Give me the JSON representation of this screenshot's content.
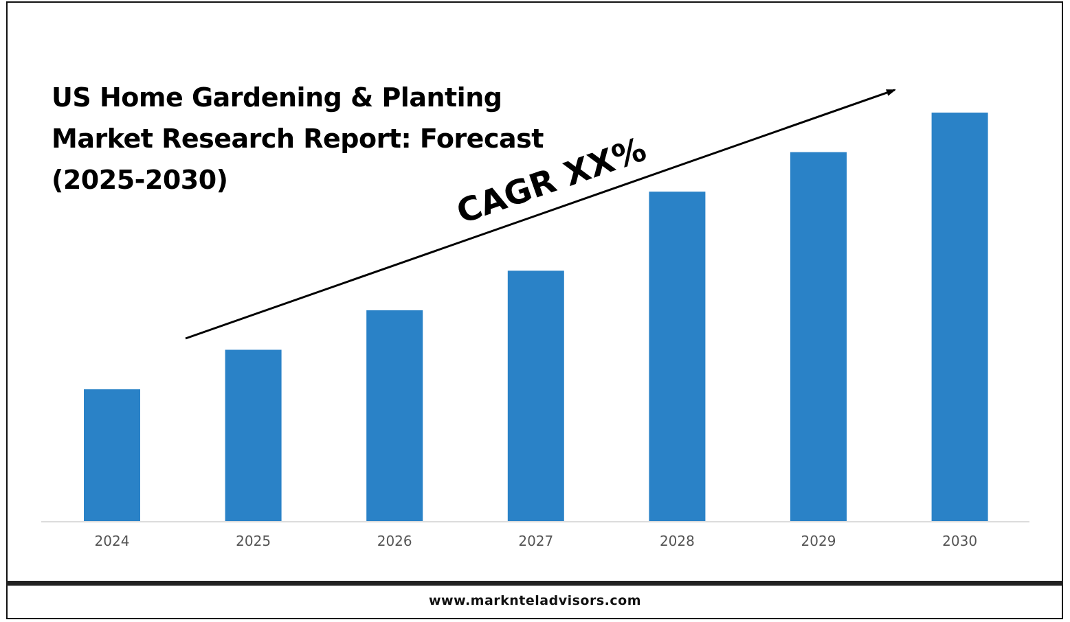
{
  "chart_data": {
    "type": "bar",
    "title_lines": [
      "US Home Gardening & Planting",
      "Market Research Report: Forecast",
      "(2025-2030)"
    ],
    "categories": [
      "2024",
      "2025",
      "2026",
      "2027",
      "2028",
      "2029",
      "2030"
    ],
    "values": [
      1.0,
      1.3,
      1.6,
      1.9,
      2.5,
      2.8,
      3.1
    ],
    "ylim": [
      0,
      3.1
    ],
    "bar_color": "#2a82c7",
    "annotation": "CAGR XX%",
    "grid": false,
    "legend": "none"
  },
  "footer": {
    "url": "www.marknteladvisors.com"
  }
}
